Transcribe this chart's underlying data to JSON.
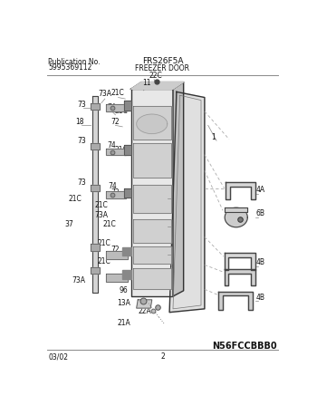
{
  "title_model": "FRS26F5A",
  "title_section": "FREEZER DOOR",
  "pub_no_label": "Publication No.",
  "pub_no": "5995369112",
  "footer_left": "03/02",
  "footer_center": "2",
  "footer_right": "N56FCCBBB0",
  "bg_color": "#ffffff",
  "label_color": "#111111",
  "part_line_color": "#555555",
  "part_fill_light": "#dddddd",
  "part_fill_mid": "#bbbbbb",
  "part_fill_dark": "#888888",
  "header_line_color": "#888888",
  "dashed_line_color": "#aaaaaa"
}
